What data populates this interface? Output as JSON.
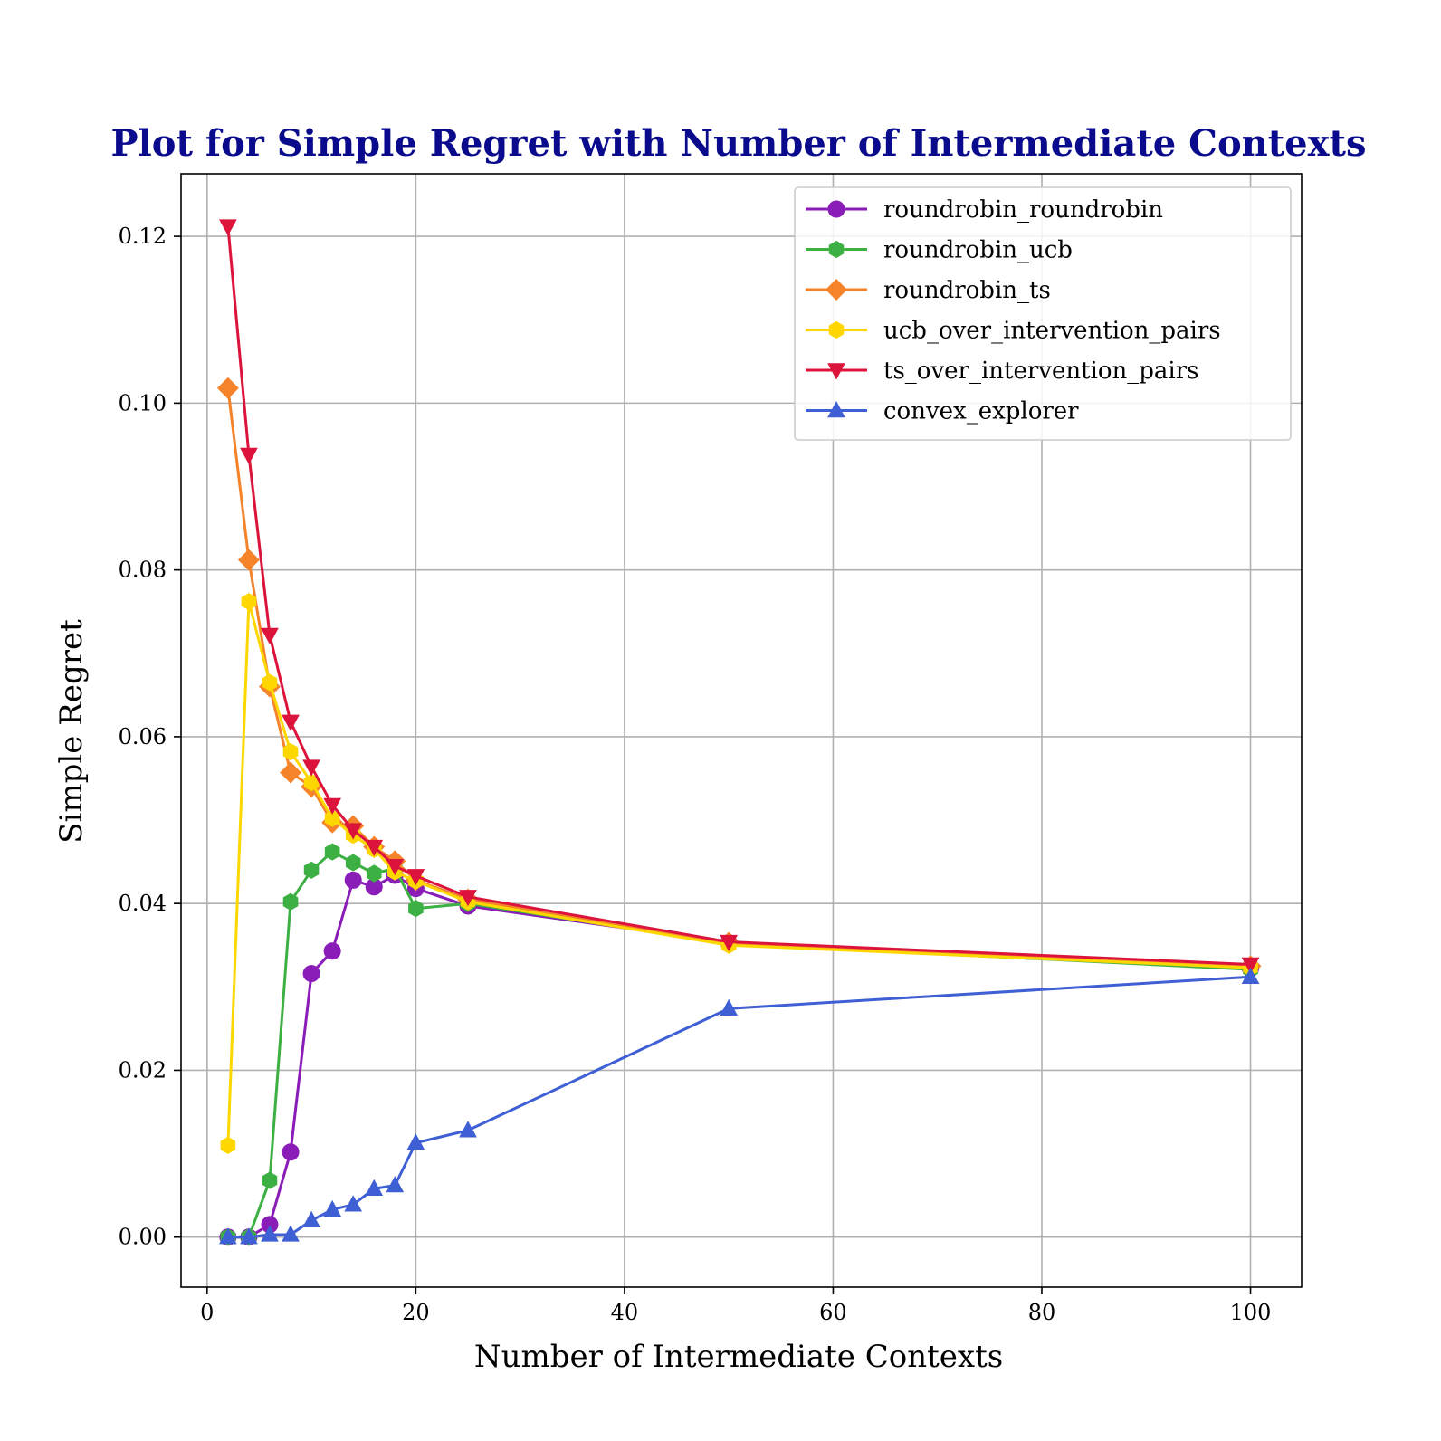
{
  "chart_data": {
    "type": "line",
    "title": "Plot for Simple Regret with Number of Intermediate Contexts",
    "title_color": "#0a0a8c",
    "xlabel": "Number of Intermediate Contexts",
    "ylabel": "Simple Regret",
    "xlim": [
      -2.5,
      104.9
    ],
    "ylim": [
      -0.006,
      0.1275
    ],
    "x_ticks": [
      0,
      20,
      40,
      60,
      80,
      100
    ],
    "x_tick_labels": [
      "0",
      "20",
      "40",
      "60",
      "80",
      "100"
    ],
    "y_ticks": [
      0.0,
      0.02,
      0.04,
      0.06,
      0.08,
      0.1,
      0.12
    ],
    "y_tick_labels": [
      "0.00",
      "0.02",
      "0.04",
      "0.06",
      "0.08",
      "0.10",
      "0.12"
    ],
    "grid": true,
    "legend_position": "top-right",
    "x": [
      2,
      4,
      6,
      8,
      10,
      12,
      14,
      16,
      18,
      20,
      25,
      50,
      100
    ],
    "series": [
      {
        "name": "roundrobin_roundrobin",
        "color": "#8a1cb8",
        "marker": "circle",
        "values": [
          0.0,
          0.0,
          0.0015,
          0.0102,
          0.0316,
          0.0343,
          0.0428,
          0.042,
          0.0434,
          0.0418,
          0.0397,
          0.0353,
          0.0322
        ]
      },
      {
        "name": "roundrobin_ucb",
        "color": "#3cb043",
        "marker": "hexagon",
        "values": [
          0.0,
          0.0,
          0.0068,
          0.0402,
          0.044,
          0.0462,
          0.0449,
          0.0436,
          0.0442,
          0.0394,
          0.04,
          0.0352,
          0.0321
        ]
      },
      {
        "name": "roundrobin_ts",
        "color": "#f5832a",
        "marker": "diamond",
        "values": [
          0.1018,
          0.0812,
          0.066,
          0.0557,
          0.054,
          0.0497,
          0.0493,
          0.0468,
          0.0451,
          0.0428,
          0.0405,
          0.0353,
          0.0325
        ]
      },
      {
        "name": "ucb_over_intervention_pairs",
        "color": "#ffd700",
        "marker": "hexagon",
        "values": [
          0.011,
          0.0762,
          0.0665,
          0.0582,
          0.0545,
          0.0502,
          0.0482,
          0.0465,
          0.0438,
          0.0427,
          0.0402,
          0.035,
          0.0323
        ]
      },
      {
        "name": "ts_over_intervention_pairs",
        "color": "#dc143c",
        "marker": "triangle-down",
        "values": [
          0.1212,
          0.0938,
          0.0722,
          0.0618,
          0.0564,
          0.0518,
          0.0488,
          0.0468,
          0.0445,
          0.0433,
          0.0408,
          0.0354,
          0.0327
        ]
      },
      {
        "name": "convex_explorer",
        "color": "#3f5fd4",
        "marker": "triangle-up",
        "values": [
          0.0,
          0.0,
          0.0003,
          0.0003,
          0.002,
          0.0033,
          0.0039,
          0.0058,
          0.0062,
          0.0113,
          0.0128,
          0.0274,
          0.0312
        ]
      }
    ]
  }
}
